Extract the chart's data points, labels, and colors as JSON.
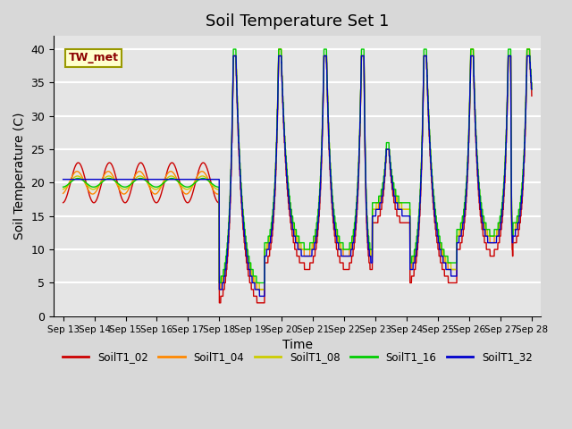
{
  "title": "Soil Temperature Set 1",
  "xlabel": "Time",
  "ylabel": "Soil Temperature (C)",
  "ylim": [
    0,
    42
  ],
  "annotation": "TW_met",
  "series_colors": {
    "SoilT1_02": "#cc0000",
    "SoilT1_04": "#ff8800",
    "SoilT1_08": "#cccc00",
    "SoilT1_16": "#00cc00",
    "SoilT1_32": "#0000cc"
  },
  "legend_order": [
    "SoilT1_02",
    "SoilT1_04",
    "SoilT1_08",
    "SoilT1_16",
    "SoilT1_32"
  ],
  "x_tick_labels": [
    "Sep 13",
    "Sep 14",
    "Sep 15",
    "Sep 16",
    "Sep 17",
    "Sep 18",
    "Sep 19",
    "Sep 20",
    "Sep 21",
    "Sep 22",
    "Sep 23",
    "Sep 24",
    "Sep 25",
    "Sep 26",
    "Sep 27",
    "Sep 28"
  ],
  "background_color": "#e5e5e5",
  "grid_color": "#ffffff",
  "fig_facecolor": "#d8d8d8"
}
